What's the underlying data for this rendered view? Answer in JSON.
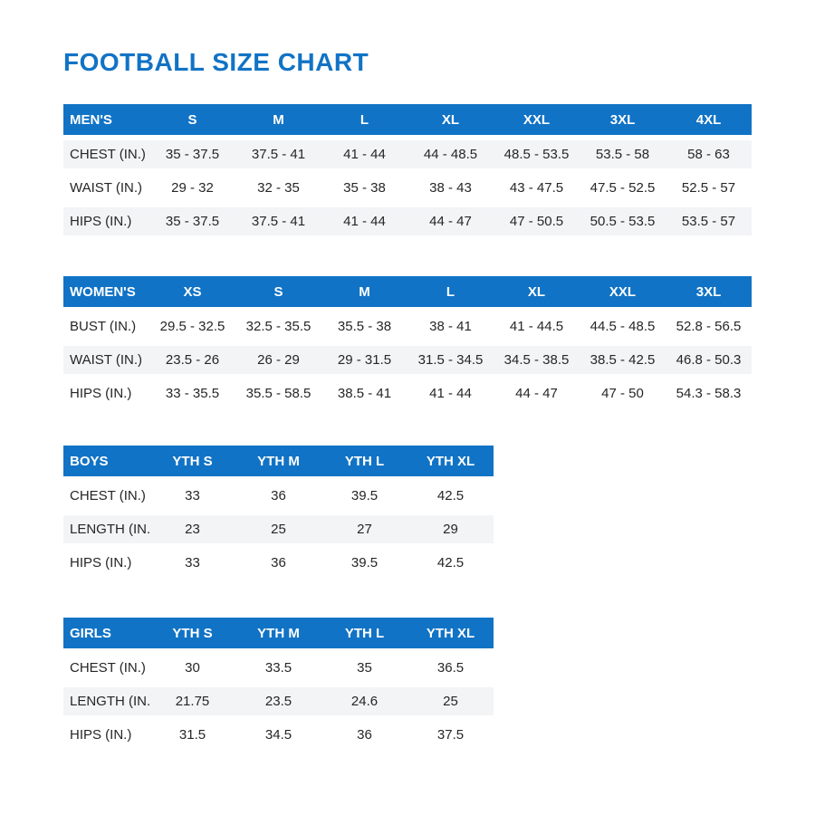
{
  "page": {
    "title": "FOOTBALL SIZE CHART"
  },
  "colors": {
    "accent_blue": "#1173c5",
    "header_text": "#ffffff",
    "stripe_gray": "#f3f4f6",
    "body_text": "#262626"
  },
  "tables": [
    {
      "id": "mens",
      "header": [
        "MEN'S",
        "S",
        "M",
        "L",
        "XL",
        "XXL",
        "3XL",
        "4XL"
      ],
      "rows": [
        {
          "label": "CHEST (IN.)",
          "shaded": true,
          "values": [
            "35 - 37.5",
            "37.5 - 41",
            "41 - 44",
            "44 - 48.5",
            "48.5 - 53.5",
            "53.5 - 58",
            "58 - 63"
          ]
        },
        {
          "label": "WAIST (IN.)",
          "shaded": false,
          "values": [
            "29 - 32",
            "32 - 35",
            "35 - 38",
            "38 - 43",
            "43 - 47.5",
            "47.5 - 52.5",
            "52.5 - 57"
          ]
        },
        {
          "label": "HIPS (IN.)",
          "shaded": true,
          "values": [
            "35 - 37.5",
            "37.5 - 41",
            "41 - 44",
            "44 - 47",
            "47 - 50.5",
            "50.5 - 53.5",
            "53.5 - 57"
          ]
        }
      ]
    },
    {
      "id": "womens",
      "header": [
        "WOMEN'S",
        "XS",
        "S",
        "M",
        "L",
        "XL",
        "XXL",
        "3XL"
      ],
      "rows": [
        {
          "label": "BUST (IN.)",
          "shaded": false,
          "values": [
            "29.5 - 32.5",
            "32.5 - 35.5",
            "35.5 - 38",
            "38 - 41",
            "41 - 44.5",
            "44.5 - 48.5",
            "52.8 - 56.5"
          ]
        },
        {
          "label": "WAIST (IN.)",
          "shaded": true,
          "values": [
            "23.5 - 26",
            "26 - 29",
            "29 - 31.5",
            "31.5 - 34.5",
            "34.5 - 38.5",
            "38.5 - 42.5",
            "46.8 - 50.3"
          ]
        },
        {
          "label": "HIPS (IN.)",
          "shaded": false,
          "values": [
            "33 - 35.5",
            "35.5 - 58.5",
            "38.5 - 41",
            "41 - 44",
            "44 - 47",
            "47 - 50",
            "54.3 - 58.3"
          ]
        }
      ]
    },
    {
      "id": "boys",
      "header": [
        "BOYS",
        "YTH S",
        "YTH M",
        "YTH L",
        "YTH XL"
      ],
      "rows": [
        {
          "label": "CHEST (IN.)",
          "shaded": false,
          "values": [
            "33",
            "36",
            "39.5",
            "42.5"
          ]
        },
        {
          "label": "LENGTH (IN.)",
          "shaded": true,
          "values": [
            "23",
            "25",
            "27",
            "29"
          ]
        },
        {
          "label": "HIPS (IN.)",
          "shaded": false,
          "values": [
            "33",
            "36",
            "39.5",
            "42.5"
          ]
        }
      ]
    },
    {
      "id": "girls",
      "header": [
        "GIRLS",
        "YTH S",
        "YTH M",
        "YTH L",
        "YTH XL"
      ],
      "rows": [
        {
          "label": "CHEST (IN.)",
          "shaded": false,
          "values": [
            "30",
            "33.5",
            "35",
            "36.5"
          ]
        },
        {
          "label": "LENGTH (IN.)",
          "shaded": true,
          "values": [
            "21.75",
            "23.5",
            "24.6",
            "25"
          ]
        },
        {
          "label": "HIPS (IN.)",
          "shaded": false,
          "values": [
            "31.5",
            "34.5",
            "36",
            "37.5"
          ]
        }
      ]
    }
  ]
}
